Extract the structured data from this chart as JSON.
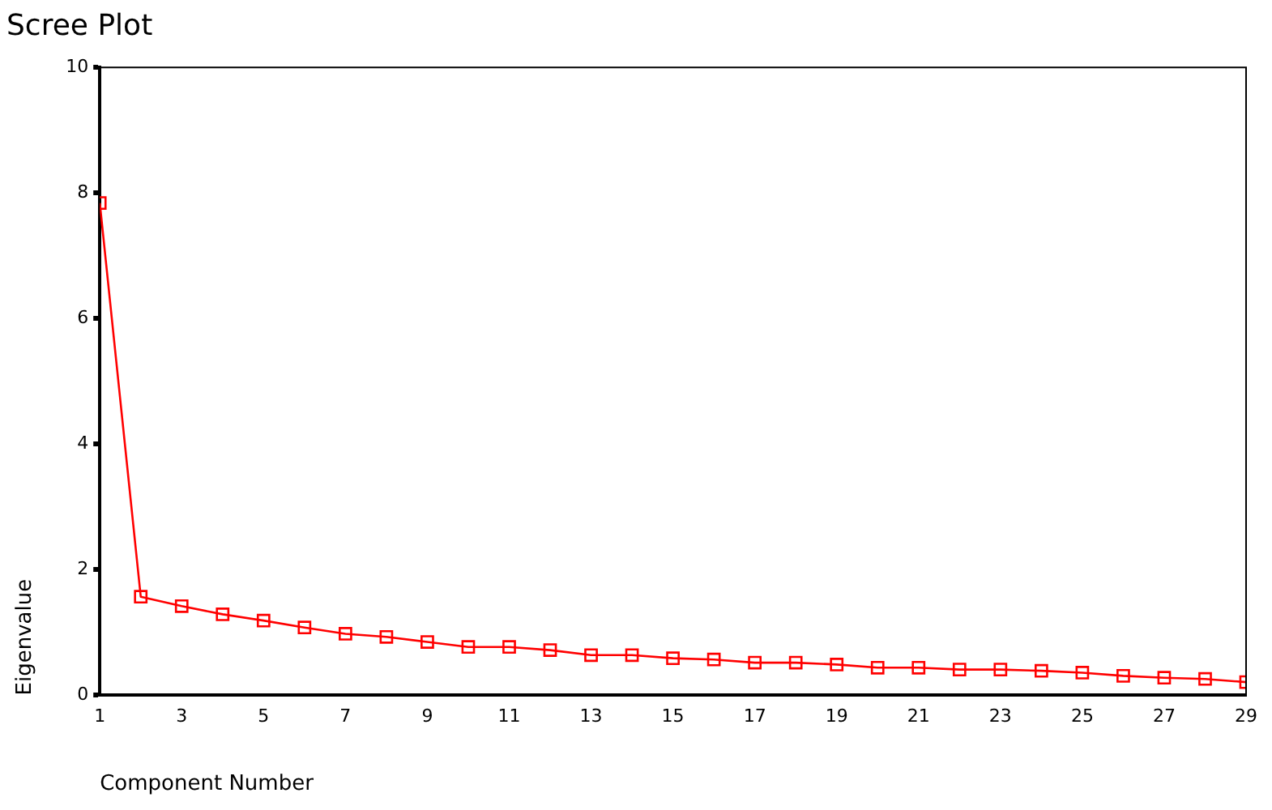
{
  "chart_data": {
    "type": "line",
    "title": "Scree Plot",
    "xlabel": "Component Number",
    "ylabel": "Eigenvalue",
    "x": [
      1,
      2,
      3,
      4,
      5,
      6,
      7,
      8,
      9,
      10,
      11,
      12,
      13,
      14,
      15,
      16,
      17,
      18,
      19,
      20,
      21,
      22,
      23,
      24,
      25,
      26,
      27,
      28,
      29
    ],
    "series": [
      {
        "color": "#ff0000",
        "values": [
          7.84,
          1.57,
          1.42,
          1.29,
          1.19,
          1.08,
          0.98,
          0.93,
          0.85,
          0.77,
          0.77,
          0.72,
          0.64,
          0.64,
          0.59,
          0.57,
          0.52,
          0.52,
          0.49,
          0.44,
          0.44,
          0.41,
          0.41,
          0.39,
          0.36,
          0.31,
          0.28,
          0.26,
          0.21
        ]
      }
    ],
    "xlim": [
      1,
      29
    ],
    "xticks": [
      1,
      3,
      5,
      7,
      9,
      11,
      13,
      15,
      17,
      19,
      21,
      23,
      25,
      27,
      29
    ],
    "ylim": [
      0,
      10
    ],
    "yticks": [
      0,
      2,
      4,
      6,
      8,
      10
    ],
    "grid": false,
    "legend": false,
    "marker": "square",
    "line_style": "solid"
  }
}
